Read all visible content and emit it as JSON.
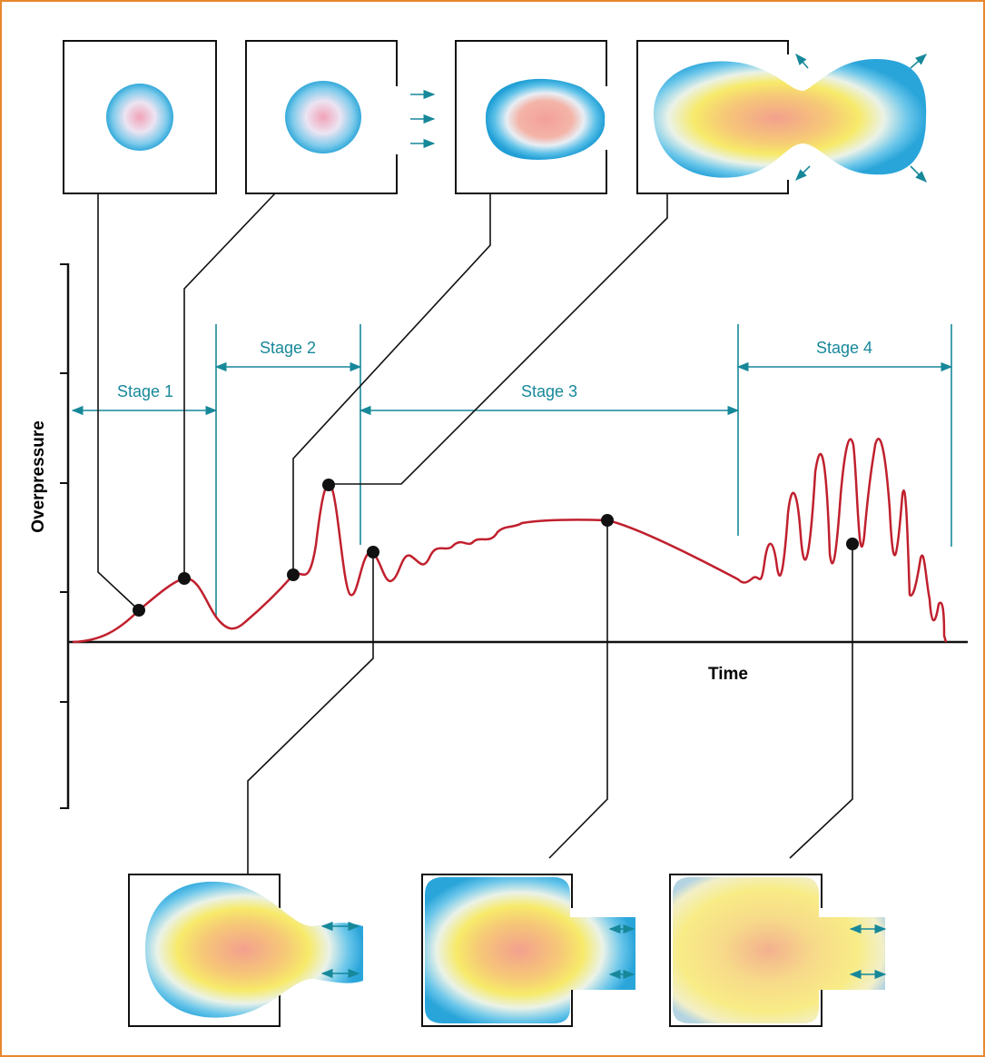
{
  "axes": {
    "y_label": "Overpressure",
    "x_label": "Time"
  },
  "stages": [
    {
      "label": "Stage 1"
    },
    {
      "label": "Stage 2"
    },
    {
      "label": "Stage 3"
    },
    {
      "label": "Stage 4"
    }
  ]
}
